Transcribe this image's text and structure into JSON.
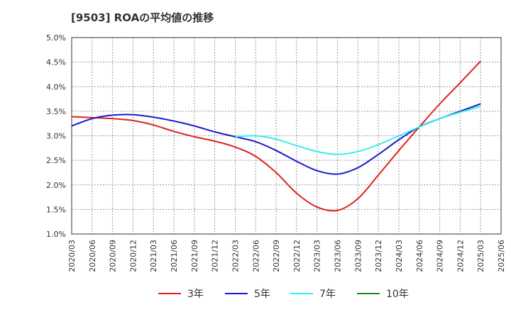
{
  "chart_data": {
    "type": "line",
    "title": "[9503]  ROAの平均値の推移",
    "xlabel": "",
    "ylabel": "",
    "ylim": [
      1.0,
      5.0
    ],
    "yticks": [
      "5.0%",
      "4.5%",
      "4.0%",
      "3.5%",
      "3.0%",
      "2.5%",
      "2.0%",
      "1.5%",
      "1.0%"
    ],
    "x": [
      "2020/03",
      "2020/06",
      "2020/09",
      "2020/12",
      "2021/03",
      "2021/06",
      "2021/09",
      "2021/12",
      "2022/03",
      "2022/06",
      "2022/09",
      "2022/12",
      "2023/03",
      "2023/06",
      "2023/09",
      "2023/12",
      "2024/03",
      "2024/06",
      "2024/09",
      "2024/12",
      "2025/03",
      "2025/06"
    ],
    "grid": true,
    "legend_position": "bottom",
    "series": [
      {
        "name": "3年",
        "color": "#dd2222",
        "values": [
          3.39,
          3.37,
          3.35,
          3.31,
          3.22,
          3.09,
          2.98,
          2.89,
          2.77,
          2.58,
          2.25,
          1.83,
          1.55,
          1.48,
          1.72,
          2.2,
          2.7,
          3.18,
          3.65,
          4.08,
          4.52,
          null
        ]
      },
      {
        "name": "5年",
        "color": "#1a1acc",
        "values": [
          3.2,
          3.35,
          3.42,
          3.43,
          3.38,
          3.3,
          3.2,
          3.08,
          2.98,
          2.88,
          2.7,
          2.48,
          2.29,
          2.22,
          2.35,
          2.62,
          2.92,
          3.18,
          3.35,
          3.5,
          3.65,
          null
        ]
      },
      {
        "name": "7年",
        "color": "#33eeee",
        "values": [
          null,
          null,
          null,
          null,
          null,
          null,
          null,
          null,
          2.98,
          3.0,
          2.93,
          2.8,
          2.68,
          2.62,
          2.68,
          2.82,
          3.0,
          3.18,
          3.35,
          3.48,
          3.6,
          null
        ]
      },
      {
        "name": "10年",
        "color": "#228822",
        "values": [
          null,
          null,
          null,
          null,
          null,
          null,
          null,
          null,
          null,
          null,
          null,
          null,
          null,
          null,
          null,
          null,
          null,
          null,
          null,
          null,
          null,
          null
        ]
      }
    ]
  }
}
